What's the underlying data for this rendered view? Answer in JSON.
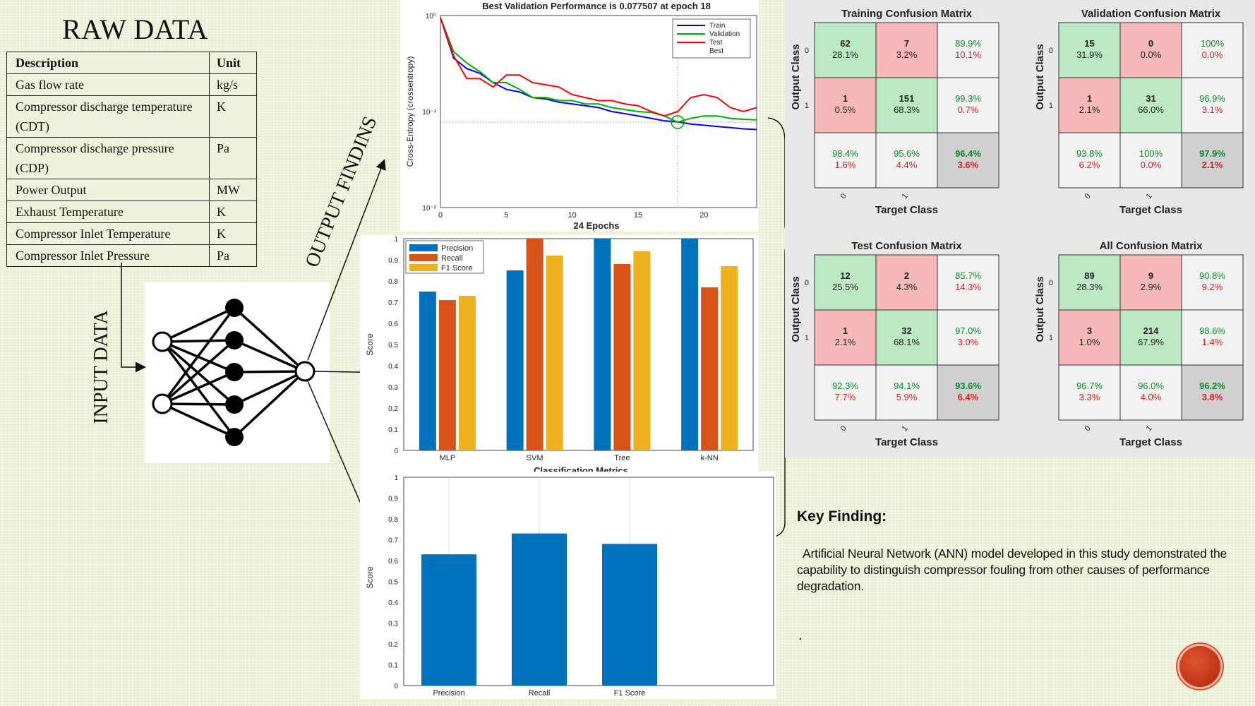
{
  "raw_data": {
    "title": "RAW DATA",
    "headers": {
      "description": "Description",
      "unit": "Unit"
    },
    "rows": [
      {
        "description": "Gas flow rate",
        "unit": "kg/s"
      },
      {
        "description": "Compressor discharge temperature (CDT)",
        "unit": "K"
      },
      {
        "description": "Compressor discharge  pressure (CDP)",
        "unit": "Pa"
      },
      {
        "description": "Power Output",
        "unit": "MW"
      },
      {
        "description": "Exhaust Temperature",
        "unit": "K"
      },
      {
        "description": "Compressor Inlet Temperature",
        "unit": "K"
      },
      {
        "description": "Compressor Inlet Pressure",
        "unit": "Pa"
      }
    ]
  },
  "labels": {
    "input_data": "INPUT DATA",
    "output_findings": "OUTPUT FINDINS"
  },
  "key_finding": {
    "title": "Key Finding:",
    "text": "Artificial Neural Network (ANN) model developed in this study demonstrated the capability to distinguish compressor fouling from other causes of performance degradation.",
    "dot": "."
  },
  "colors": {
    "precision": "#0072bd",
    "recall": "#d95319",
    "f1": "#edb120",
    "train": "#0000ff",
    "validation": "#00b000",
    "test": "#ff0000",
    "cm_correct": "#bde8c4",
    "cm_wrong": "#f6b8b8",
    "cm_total": "#d0d0d0"
  },
  "chart_data": [
    {
      "type": "line",
      "title": "Best Validation Performance is 0.077507 at epoch 18",
      "xlabel": "24 Epochs",
      "ylabel": "Cross-Entropy  (crossentropy)",
      "yscale": "log",
      "xlim": [
        0,
        24
      ],
      "ylim": [
        0.01,
        1
      ],
      "xticks": [
        "0",
        "5",
        "10",
        "15",
        "20"
      ],
      "yticks": [
        "10⁰",
        "10⁻¹",
        "10⁻²"
      ],
      "legend": [
        "Train",
        "Validation",
        "Test",
        "Best"
      ],
      "legend_position": "top-right",
      "best": {
        "epoch": 18,
        "value": 0.0775
      },
      "series": [
        {
          "name": "Train",
          "x": [
            0,
            1,
            2,
            3,
            4,
            5,
            6,
            7,
            8,
            9,
            10,
            11,
            12,
            13,
            14,
            15,
            16,
            17,
            18,
            19,
            20,
            21,
            22,
            23,
            24
          ],
          "values": [
            0.95,
            0.36,
            0.28,
            0.25,
            0.2,
            0.17,
            0.16,
            0.14,
            0.135,
            0.125,
            0.12,
            0.115,
            0.11,
            0.1,
            0.095,
            0.09,
            0.085,
            0.08,
            0.078,
            0.074,
            0.072,
            0.07,
            0.068,
            0.066,
            0.065
          ]
        },
        {
          "name": "Validation",
          "x": [
            0,
            1,
            2,
            3,
            4,
            5,
            6,
            7,
            8,
            9,
            10,
            11,
            12,
            13,
            14,
            15,
            16,
            17,
            18,
            19,
            20,
            21,
            22,
            23,
            24
          ],
          "values": [
            0.95,
            0.42,
            0.32,
            0.26,
            0.2,
            0.2,
            0.17,
            0.14,
            0.14,
            0.13,
            0.13,
            0.12,
            0.12,
            0.11,
            0.105,
            0.1,
            0.098,
            0.09,
            0.0775,
            0.085,
            0.09,
            0.09,
            0.085,
            0.083,
            0.082
          ]
        },
        {
          "name": "Test",
          "x": [
            0,
            1,
            2,
            3,
            4,
            5,
            6,
            7,
            8,
            9,
            10,
            11,
            12,
            13,
            14,
            15,
            16,
            17,
            18,
            19,
            20,
            21,
            22,
            23,
            24
          ],
          "values": [
            0.95,
            0.38,
            0.22,
            0.22,
            0.18,
            0.24,
            0.24,
            0.2,
            0.19,
            0.18,
            0.15,
            0.14,
            0.13,
            0.13,
            0.12,
            0.115,
            0.1,
            0.09,
            0.1,
            0.14,
            0.15,
            0.14,
            0.11,
            0.1,
            0.11
          ]
        }
      ]
    },
    {
      "type": "bar",
      "title": "Classification Metrics",
      "xlabel": "",
      "ylabel": "Score",
      "ylim": [
        0,
        1
      ],
      "yticks": [
        "0",
        "0.1",
        "0.2",
        "0.3",
        "0.4",
        "0.5",
        "0.6",
        "0.7",
        "0.8",
        "0.9",
        "1"
      ],
      "categories": [
        "MLP",
        "SVM",
        "Tree",
        "k-NN"
      ],
      "legend_position": "top-left",
      "series": [
        {
          "name": "Precision",
          "values": [
            0.75,
            0.85,
            1.0,
            1.0
          ]
        },
        {
          "name": "Recall",
          "values": [
            0.71,
            1.0,
            0.88,
            0.77
          ]
        },
        {
          "name": "F1 Score",
          "values": [
            0.73,
            0.92,
            0.94,
            0.87
          ]
        }
      ]
    },
    {
      "type": "bar",
      "title": "",
      "xlabel": "",
      "ylabel": "Score",
      "ylim": [
        0,
        1
      ],
      "yticks": [
        "0",
        "0.1",
        "0.2",
        "0.3",
        "0.4",
        "0.5",
        "0.6",
        "0.7",
        "0.8",
        "0.9",
        "1"
      ],
      "categories": [
        "Precision",
        "Recall",
        "F1 Score"
      ],
      "series": [
        {
          "values": [
            0.63,
            0.73,
            0.68
          ]
        }
      ]
    },
    {
      "type": "table",
      "title": "Training Confusion Matrix",
      "xlabel": "Target Class",
      "ylabel": "Output Class",
      "class_labels": [
        "0",
        "1"
      ],
      "cells": [
        [
          {
            "count": "62",
            "pct": "28.1%"
          },
          {
            "count": "7",
            "pct": "3.2%"
          },
          {
            "top": "89.9%",
            "bottom": "10.1%"
          }
        ],
        [
          {
            "count": "1",
            "pct": "0.5%"
          },
          {
            "count": "151",
            "pct": "68.3%"
          },
          {
            "top": "99.3%",
            "bottom": "0.7%"
          }
        ],
        [
          {
            "top": "98.4%",
            "bottom": "1.6%"
          },
          {
            "top": "95.6%",
            "bottom": "4.4%"
          },
          {
            "top": "96.4%",
            "bottom": "3.6%"
          }
        ]
      ]
    },
    {
      "type": "table",
      "title": "Validation Confusion Matrix",
      "xlabel": "Target Class",
      "ylabel": "Output Class",
      "class_labels": [
        "0",
        "1"
      ],
      "cells": [
        [
          {
            "count": "15",
            "pct": "31.9%"
          },
          {
            "count": "0",
            "pct": "0.0%"
          },
          {
            "top": "100%",
            "bottom": "0.0%"
          }
        ],
        [
          {
            "count": "1",
            "pct": "2.1%"
          },
          {
            "count": "31",
            "pct": "66.0%"
          },
          {
            "top": "96.9%",
            "bottom": "3.1%"
          }
        ],
        [
          {
            "top": "93.8%",
            "bottom": "6.2%"
          },
          {
            "top": "100%",
            "bottom": "0.0%"
          },
          {
            "top": "97.9%",
            "bottom": "2.1%"
          }
        ]
      ]
    },
    {
      "type": "table",
      "title": "Test Confusion Matrix",
      "xlabel": "Target Class",
      "ylabel": "Output Class",
      "class_labels": [
        "0",
        "1"
      ],
      "cells": [
        [
          {
            "count": "12",
            "pct": "25.5%"
          },
          {
            "count": "2",
            "pct": "4.3%"
          },
          {
            "top": "85.7%",
            "bottom": "14.3%"
          }
        ],
        [
          {
            "count": "1",
            "pct": "2.1%"
          },
          {
            "count": "32",
            "pct": "68.1%"
          },
          {
            "top": "97.0%",
            "bottom": "3.0%"
          }
        ],
        [
          {
            "top": "92.3%",
            "bottom": "7.7%"
          },
          {
            "top": "94.1%",
            "bottom": "5.9%"
          },
          {
            "top": "93.6%",
            "bottom": "6.4%"
          }
        ]
      ]
    },
    {
      "type": "table",
      "title": "All Confusion Matrix",
      "xlabel": "Target Class",
      "ylabel": "Output Class",
      "class_labels": [
        "0",
        "1"
      ],
      "cells": [
        [
          {
            "count": "89",
            "pct": "28.3%"
          },
          {
            "count": "9",
            "pct": "2.9%"
          },
          {
            "top": "90.8%",
            "bottom": "9.2%"
          }
        ],
        [
          {
            "count": "3",
            "pct": "1.0%"
          },
          {
            "count": "214",
            "pct": "67.9%"
          },
          {
            "top": "98.6%",
            "bottom": "1.4%"
          }
        ],
        [
          {
            "top": "96.7%",
            "bottom": "3.3%"
          },
          {
            "top": "96.0%",
            "bottom": "4.0%"
          },
          {
            "top": "96.2%",
            "bottom": "3.8%"
          }
        ]
      ]
    }
  ]
}
